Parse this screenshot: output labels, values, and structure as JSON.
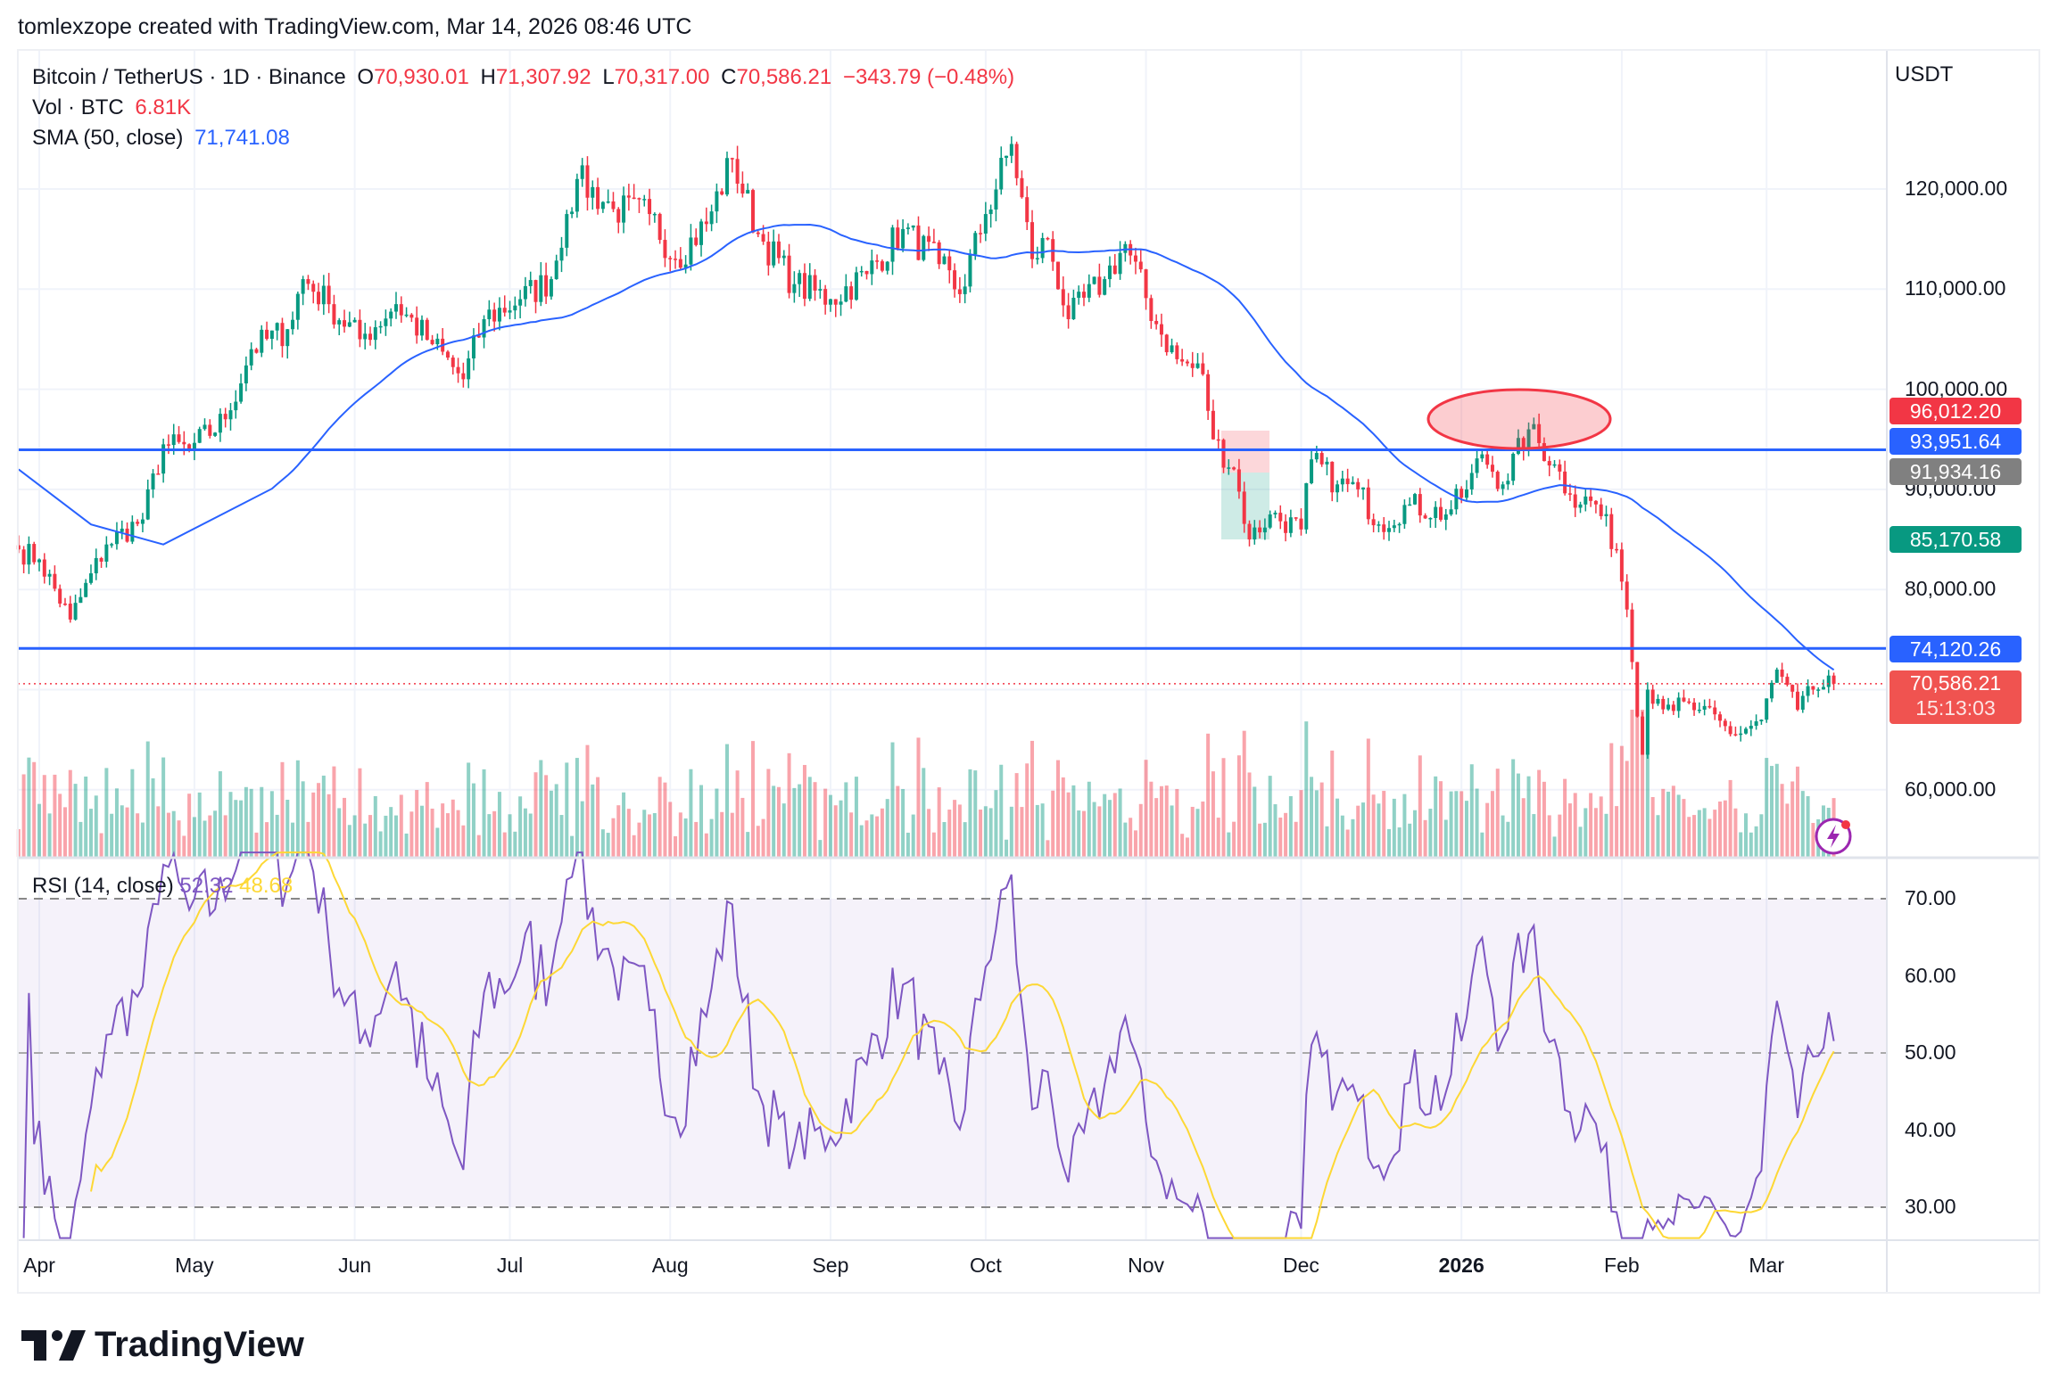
{
  "credit": "tomlexzope created with TradingView.com, Mar 14, 2026 08:46 UTC",
  "legend": {
    "symbol": "Bitcoin / TetherUS · 1D · Binance",
    "o_label": "O",
    "o": "70,930.01",
    "h_label": "H",
    "h": "71,307.92",
    "l_label": "L",
    "l": "70,317.00",
    "c_label": "C",
    "c": "70,586.21",
    "change": "−343.79 (−0.48%)",
    "vol_label": "Vol · BTC",
    "vol": "6.81K",
    "sma_label": "SMA (50, close)",
    "sma": "71,741.08"
  },
  "rsi_legend": {
    "label": "RSI (14, close)",
    "rsi": "52.32",
    "ma": "48.68"
  },
  "axis_currency": "USDT",
  "price_ticks": [
    "120,000.00",
    "110,000.00",
    "100,000.00",
    "90,000.00",
    "80,000.00",
    "60,000.00"
  ],
  "rsi_ticks": [
    "70.00",
    "60.00",
    "50.00",
    "40.00",
    "30.00"
  ],
  "time_labels": [
    {
      "label": "Apr",
      "date": "2025-04-01"
    },
    {
      "label": "May",
      "date": "2025-05-01"
    },
    {
      "label": "Jun",
      "date": "2025-06-01"
    },
    {
      "label": "Jul",
      "date": "2025-07-01"
    },
    {
      "label": "Aug",
      "date": "2025-08-01"
    },
    {
      "label": "Sep",
      "date": "2025-09-01"
    },
    {
      "label": "Oct",
      "date": "2025-10-01"
    },
    {
      "label": "Nov",
      "date": "2025-11-01"
    },
    {
      "label": "Dec",
      "date": "2025-12-01"
    },
    {
      "label": "2026",
      "date": "2026-01-01",
      "bold": true
    },
    {
      "label": "Feb",
      "date": "2026-02-01"
    },
    {
      "label": "Mar",
      "date": "2026-03-01"
    }
  ],
  "tags": {
    "t1": {
      "value": "96,012.20",
      "color": "#f23645"
    },
    "t2": {
      "value": "93,951.64",
      "color": "#2962ff"
    },
    "t3": {
      "value": "91,934.16",
      "color": "#808080"
    },
    "t4": {
      "value": "85,170.58",
      "color": "#089981"
    },
    "t5": {
      "value": "74,120.26",
      "color": "#2962ff"
    },
    "t6": {
      "value": "70,586.21",
      "color": "#f05350"
    },
    "countdown": "15:13:03"
  },
  "logo": "TradingView",
  "colors": {
    "up": "#089981",
    "down": "#f23645",
    "sma": "#2962ff",
    "rsi": "#7e57c2",
    "rsi_ma": "#fdd835",
    "hline": "#2962ff"
  },
  "chart_data": {
    "type": "candlestick",
    "title": "Bitcoin / TetherUS · 1D · Binance",
    "ylim": [
      55000,
      128000
    ],
    "rsi_ylim": [
      26,
      76
    ],
    "horizontal_lines": [
      93951.64,
      74120.26
    ],
    "last_price": 70586.21,
    "approx_closes": [
      [
        "2025-03-28",
        84000
      ],
      [
        "2025-04-01",
        83000
      ],
      [
        "2025-04-07",
        77000
      ],
      [
        "2025-04-14",
        84500
      ],
      [
        "2025-04-21",
        87000
      ],
      [
        "2025-04-25",
        94500
      ],
      [
        "2025-04-30",
        94000
      ],
      [
        "2025-05-07",
        97000
      ],
      [
        "2025-05-12",
        104000
      ],
      [
        "2025-05-19",
        106000
      ],
      [
        "2025-05-22",
        111000
      ],
      [
        "2025-05-27",
        108500
      ],
      [
        "2025-06-02",
        105000
      ],
      [
        "2025-06-09",
        108500
      ],
      [
        "2025-06-16",
        104500
      ],
      [
        "2025-06-22",
        101000
      ],
      [
        "2025-06-26",
        107000
      ],
      [
        "2025-07-03",
        109000
      ],
      [
        "2025-07-09",
        111000
      ],
      [
        "2025-07-12",
        117500
      ],
      [
        "2025-07-14",
        121000
      ],
      [
        "2025-07-21",
        118000
      ],
      [
        "2025-07-28",
        117500
      ],
      [
        "2025-08-02",
        113000
      ],
      [
        "2025-08-08",
        116500
      ],
      [
        "2025-08-13",
        123000
      ],
      [
        "2025-08-18",
        115500
      ],
      [
        "2025-08-25",
        110500
      ],
      [
        "2025-09-01",
        109000
      ],
      [
        "2025-09-08",
        111500
      ],
      [
        "2025-09-15",
        116000
      ],
      [
        "2025-09-22",
        112500
      ],
      [
        "2025-09-26",
        109500
      ],
      [
        "2025-10-01",
        117500
      ],
      [
        "2025-10-06",
        124500
      ],
      [
        "2025-10-10",
        113000
      ],
      [
        "2025-10-13",
        115000
      ],
      [
        "2025-10-17",
        107000
      ],
      [
        "2025-10-24",
        111000
      ],
      [
        "2025-10-28",
        114500
      ],
      [
        "2025-11-03",
        106500
      ],
      [
        "2025-11-07",
        103000
      ],
      [
        "2025-11-12",
        101500
      ],
      [
        "2025-11-14",
        95000
      ],
      [
        "2025-11-18",
        92000
      ],
      [
        "2025-11-21",
        85000
      ],
      [
        "2025-11-25",
        87500
      ],
      [
        "2025-12-01",
        86000
      ],
      [
        "2025-12-03",
        93000
      ],
      [
        "2025-12-08",
        90500
      ],
      [
        "2025-12-12",
        90000
      ],
      [
        "2025-12-16",
        86500
      ],
      [
        "2025-12-22",
        88500
      ],
      [
        "2025-12-29",
        87500
      ],
      [
        "2026-01-02",
        90000
      ],
      [
        "2026-01-05",
        93500
      ],
      [
        "2026-01-09",
        90500
      ],
      [
        "2026-01-14",
        96000
      ],
      [
        "2026-01-19",
        92500
      ],
      [
        "2026-01-22",
        89500
      ],
      [
        "2026-01-27",
        88500
      ],
      [
        "2026-01-31",
        84000
      ],
      [
        "2026-02-02",
        78000
      ],
      [
        "2026-02-05",
        63500
      ],
      [
        "2026-02-06",
        70000
      ],
      [
        "2026-02-10",
        68500
      ],
      [
        "2026-02-16",
        68000
      ],
      [
        "2026-02-23",
        65500
      ],
      [
        "2026-02-28",
        67000
      ],
      [
        "2026-03-03",
        72000
      ],
      [
        "2026-03-07",
        68000
      ],
      [
        "2026-03-10",
        70000
      ],
      [
        "2026-03-14",
        70586.21
      ]
    ]
  }
}
